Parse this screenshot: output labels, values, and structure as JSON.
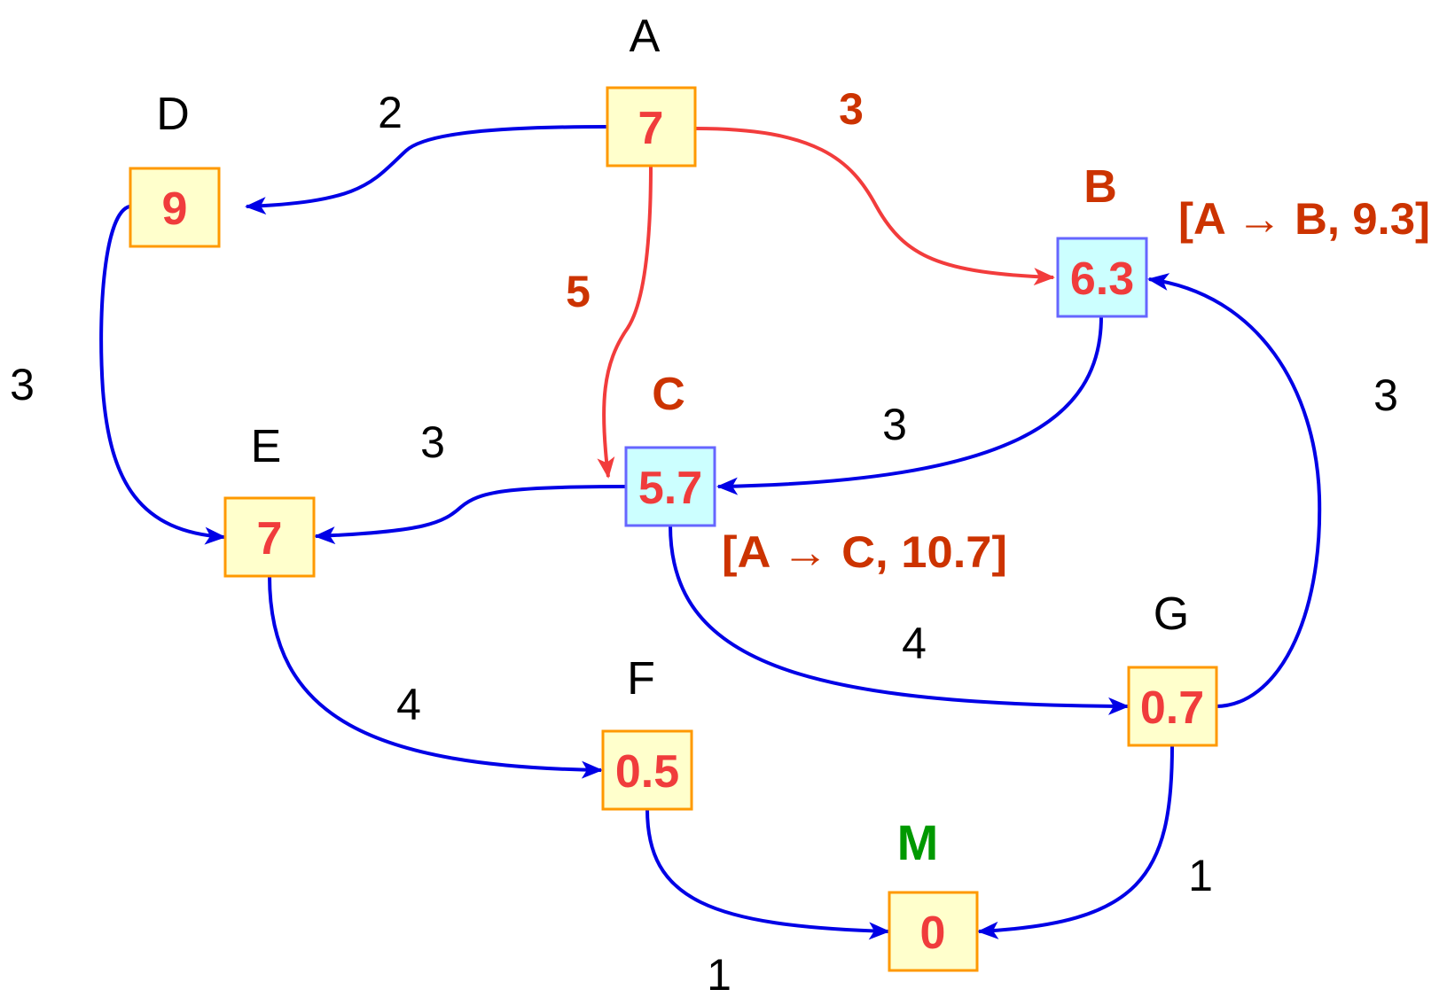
{
  "colors": {
    "edge_default": "#0000e6",
    "edge_highlight": "#f23c3c",
    "node_fill_default": "#ffffcc",
    "node_border_default": "#ff9900",
    "node_fill_highlight": "#ccffff",
    "node_border_highlight": "#6666ff",
    "value_text": "#f03c3c",
    "label_default": "#000000",
    "label_highlight": "#cc3300",
    "label_goal": "#009900"
  },
  "nodes": {
    "A": {
      "label": "A",
      "value": "7"
    },
    "B": {
      "label": "B",
      "value": "6.3"
    },
    "C": {
      "label": "C",
      "value": "5.7"
    },
    "D": {
      "label": "D",
      "value": "9"
    },
    "E": {
      "label": "E",
      "value": "7"
    },
    "F": {
      "label": "F",
      "value": "0.5"
    },
    "G": {
      "label": "G",
      "value": "0.7"
    },
    "M": {
      "label": "M",
      "value": "0"
    }
  },
  "edges": {
    "A_D": {
      "from": "A",
      "to": "D",
      "weight": "2"
    },
    "A_B": {
      "from": "A",
      "to": "B",
      "weight": "3"
    },
    "A_C": {
      "from": "A",
      "to": "C",
      "weight": "5"
    },
    "D_E": {
      "from": "D",
      "to": "E",
      "weight": "3"
    },
    "C_E": {
      "from": "C",
      "to": "E",
      "weight": "3"
    },
    "B_C": {
      "from": "B",
      "to": "C",
      "weight": "3"
    },
    "G_B": {
      "from": "G",
      "to": "B",
      "weight": "3"
    },
    "E_F": {
      "from": "E",
      "to": "F",
      "weight": "4"
    },
    "C_G": {
      "from": "C",
      "to": "G",
      "weight": "4"
    },
    "F_M": {
      "from": "F",
      "to": "M",
      "weight": "1"
    },
    "G_M": {
      "from": "G",
      "to": "M",
      "weight": "1"
    }
  },
  "annotations": {
    "B": "[A → B, 9.3]",
    "C": "[A → C, 10.7]"
  }
}
